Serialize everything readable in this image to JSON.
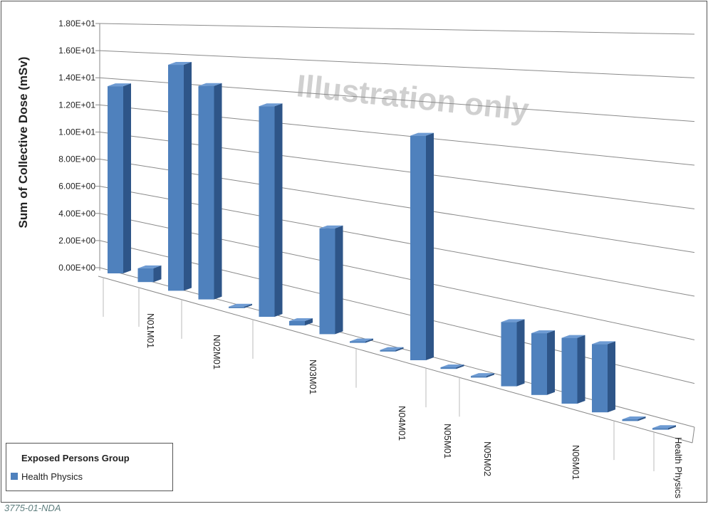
{
  "chart_data": {
    "type": "bar3d",
    "y_label": "Sum of Collective Dose (mSv)",
    "annotation": "Illustration only",
    "footer": "3775-01-NDA",
    "legend_title": "Exposed Persons Group",
    "categories": [
      null,
      "N01M01",
      null,
      null,
      "N02M01",
      null,
      null,
      "N03M01",
      null,
      null,
      "N04M01",
      null,
      "N05M01",
      "N05M02",
      null,
      "N06M01",
      null,
      null,
      "Health Physics"
    ],
    "series": [
      {
        "name": "Health Physics",
        "color": "#4f81bd",
        "values": [
          13.8,
          1.0,
          16.2,
          15.1,
          0.1,
          14.5,
          0.3,
          7.1,
          0.1,
          0.1,
          14.5,
          0.1,
          0.1,
          4.0,
          3.8,
          4.0,
          4.1,
          0.1,
          0.1
        ]
      }
    ],
    "ylim": [
      0,
      18
    ],
    "yticks": [
      {
        "value": 0,
        "label": "0.00E+00"
      },
      {
        "value": 2,
        "label": "2.00E+00"
      },
      {
        "value": 4,
        "label": "4.00E+00"
      },
      {
        "value": 6,
        "label": "6.00E+00"
      },
      {
        "value": 8,
        "label": "8.00E+00"
      },
      {
        "value": 10,
        "label": "1.00E+01"
      },
      {
        "value": 12,
        "label": "1.20E+01"
      },
      {
        "value": 14,
        "label": "1.40E+01"
      },
      {
        "value": 16,
        "label": "1.60E+01"
      },
      {
        "value": 18,
        "label": "1.80E+01"
      }
    ],
    "grid": true,
    "legend": "bottom-left"
  }
}
